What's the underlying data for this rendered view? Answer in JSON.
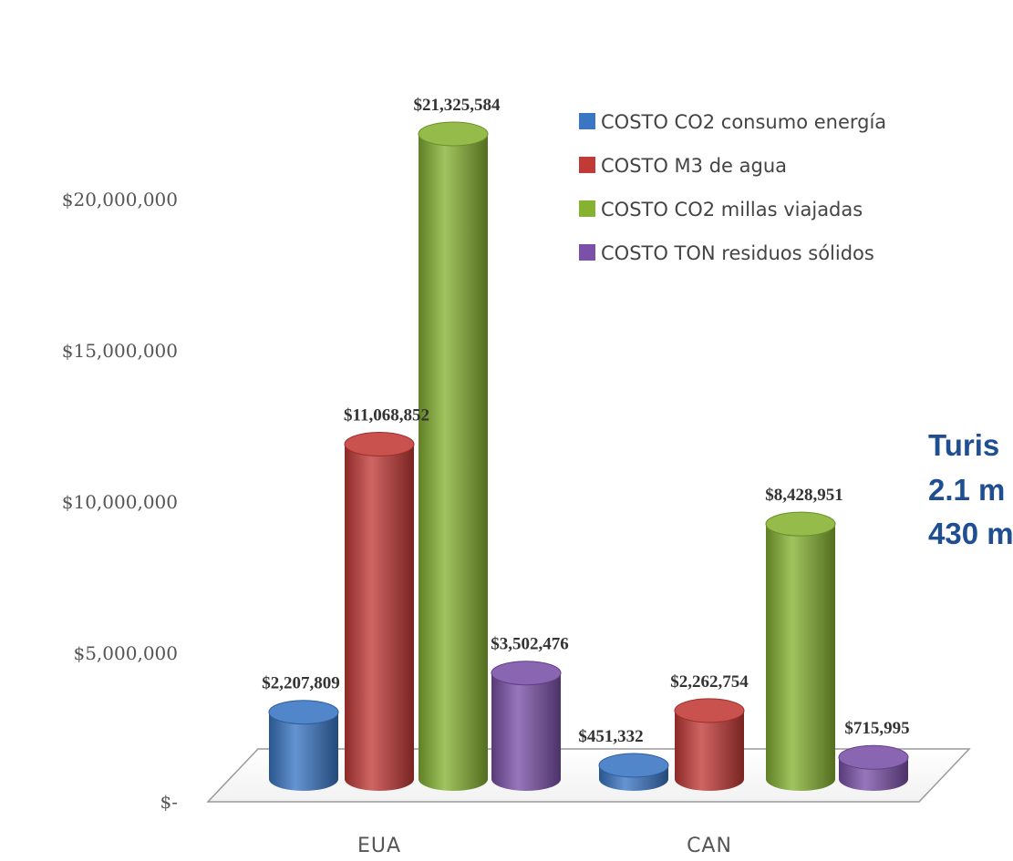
{
  "chart_data": {
    "type": "bar",
    "categories": [
      "EUA",
      "CAN"
    ],
    "series": [
      {
        "name": "COSTO CO2 consumo energía",
        "color": "#3a76c4",
        "values": [
          2207809,
          451332
        ],
        "labels": [
          "$2,207,809",
          "$451,332"
        ]
      },
      {
        "name": "COSTO M3 de agua",
        "color": "#c23a37",
        "values": [
          11068852,
          2262754
        ],
        "labels": [
          "$11,068,852",
          "$2,262,754"
        ]
      },
      {
        "name": "COSTO CO2 millas viajadas",
        "color": "#86b232",
        "values": [
          21325584,
          8428951
        ],
        "labels": [
          "$21,325,584",
          "$8,428,951"
        ]
      },
      {
        "name": "COSTO TON residuos sólidos",
        "color": "#7a50a8",
        "values": [
          3502476,
          715995
        ],
        "labels": [
          "$3,502,476",
          "$715,995"
        ]
      }
    ],
    "yticks": [
      {
        "value": 0,
        "label": "$-"
      },
      {
        "value": 5000000,
        "label": "$5,000,000"
      },
      {
        "value": 10000000,
        "label": "$10,000,000"
      },
      {
        "value": 15000000,
        "label": "$15,000,000"
      },
      {
        "value": 20000000,
        "label": "$20,000,000"
      }
    ],
    "ylim": [
      0,
      21325584
    ],
    "grid": false,
    "legend_position": "top-right",
    "title": "",
    "xlabel": "",
    "ylabel": ""
  },
  "annotation": {
    "lines": [
      "Turis",
      "2.1 m",
      "430 m"
    ]
  }
}
